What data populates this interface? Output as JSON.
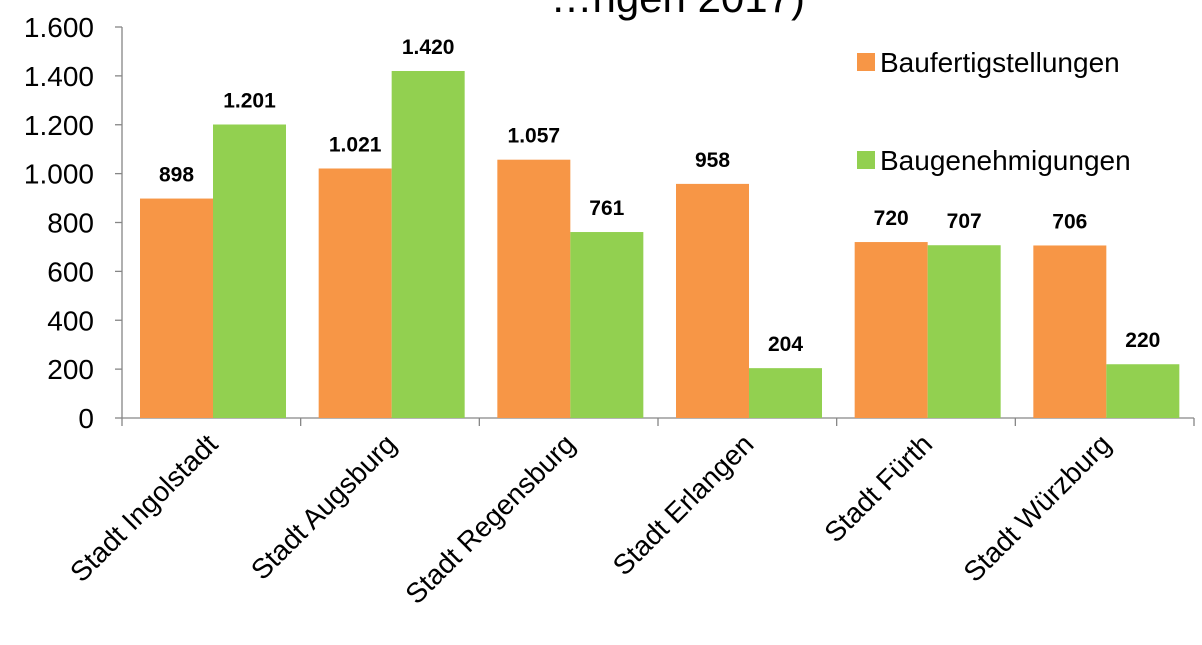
{
  "chart_data": {
    "type": "bar",
    "title": "…ngen 2017)",
    "categories": [
      "Stadt Ingolstadt",
      "Stadt Augsburg",
      "Stadt Regensburg",
      "Stadt Erlangen",
      "Stadt Fürth",
      "Stadt Würzburg"
    ],
    "series": [
      {
        "name": "Baufertigstellungen",
        "color": "#F79646",
        "values": [
          898,
          1021,
          1057,
          958,
          720,
          706
        ],
        "labels": [
          "898",
          "1.021",
          "1.057",
          "958",
          "720",
          "706"
        ]
      },
      {
        "name": "Baugenehmigungen",
        "color": "#92D050",
        "values": [
          1201,
          1420,
          761,
          204,
          707,
          220
        ],
        "labels": [
          "1.201",
          "1.420",
          "761",
          "204",
          "707",
          "220"
        ]
      }
    ],
    "ylim": [
      0,
      1600
    ],
    "yticks": [
      0,
      200,
      400,
      600,
      800,
      1000,
      1200,
      1400,
      1600
    ],
    "ytick_labels": [
      "0",
      "200",
      "400",
      "600",
      "800",
      "1.000",
      "1.200",
      "1.400",
      "1.600"
    ],
    "grid": false,
    "legend_position": "top-right",
    "xlabel": "",
    "ylabel": ""
  }
}
